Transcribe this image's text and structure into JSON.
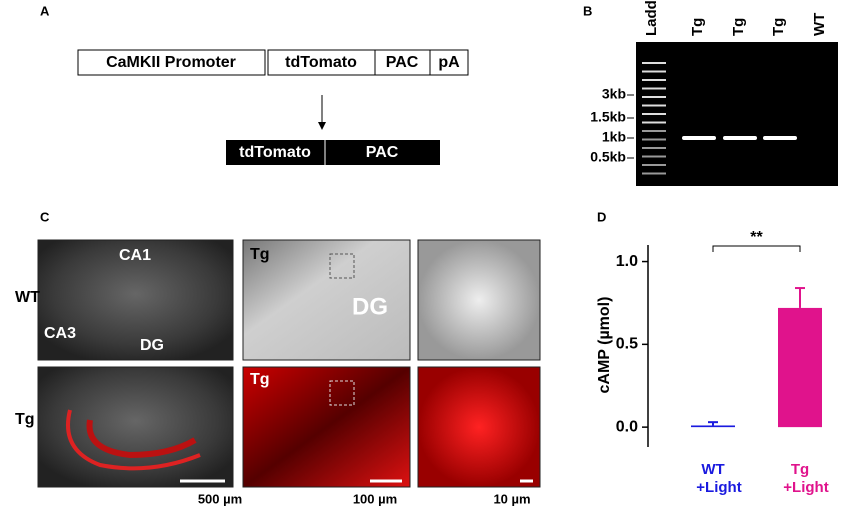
{
  "panel_a": {
    "label": "A",
    "construct": [
      "CaMKII Promoter",
      "tdTomato",
      "PAC",
      "pA"
    ],
    "product": [
      "tdTomato",
      "PAC"
    ]
  },
  "panel_b": {
    "label": "B",
    "lanes": [
      "Ladder",
      "Tg",
      "Tg",
      "Tg",
      "WT"
    ],
    "size_markers": [
      "3kb",
      "1.5kb",
      "1kb",
      "0.5kb"
    ]
  },
  "panel_c": {
    "label": "C",
    "rows": [
      "WT",
      "Tg"
    ],
    "regions": [
      "CA1",
      "CA3",
      "DG"
    ],
    "zoom_labels": [
      "Tg",
      "DG",
      "Tg"
    ],
    "scale_bars": [
      "500 µm",
      "100 µm",
      "10 µm"
    ]
  },
  "chart_data": {
    "type": "bar",
    "panel_label": "D",
    "y_label": "cAMP (µmol)",
    "categories": [
      "WT +Light",
      "Tg +Light"
    ],
    "values": [
      0.01,
      0.72
    ],
    "errors": [
      0.02,
      0.12
    ],
    "colors": [
      "#1a1adf",
      "#e0138c"
    ],
    "ylim": [
      -0.12,
      1.1
    ],
    "yticks": [
      {
        "value": 0,
        "label": "0.0"
      },
      {
        "value": 0.5,
        "label": "0.5"
      },
      {
        "value": 1,
        "label": "1.0"
      }
    ],
    "annotation": "**"
  }
}
